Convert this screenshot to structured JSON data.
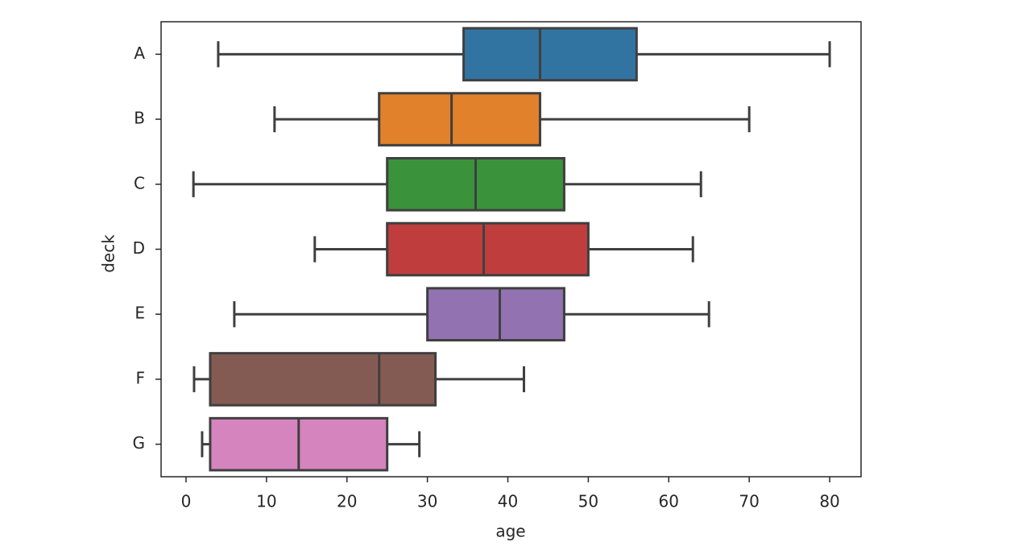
{
  "chart_data": {
    "type": "box",
    "xlabel": "age",
    "ylabel": "deck",
    "categories": [
      "A",
      "B",
      "C",
      "D",
      "E",
      "F",
      "G"
    ],
    "colors": [
      "#3274a1",
      "#e1812c",
      "#3a923a",
      "#c03d3e",
      "#9372b2",
      "#845b53",
      "#d684bd"
    ],
    "min": [
      4,
      11,
      0.92,
      16,
      6,
      1,
      2
    ],
    "q1": [
      34.5,
      24,
      25,
      25,
      30,
      3,
      3
    ],
    "median": [
      44,
      33,
      36,
      37,
      39,
      24,
      14
    ],
    "q3": [
      56,
      44,
      47,
      50,
      47,
      31,
      25
    ],
    "max": [
      80,
      70,
      64,
      63,
      65,
      42,
      29
    ],
    "xlim": [
      -3.1,
      83.9
    ],
    "xticks": [
      0,
      10,
      20,
      30,
      40,
      50,
      60,
      70,
      80
    ]
  }
}
